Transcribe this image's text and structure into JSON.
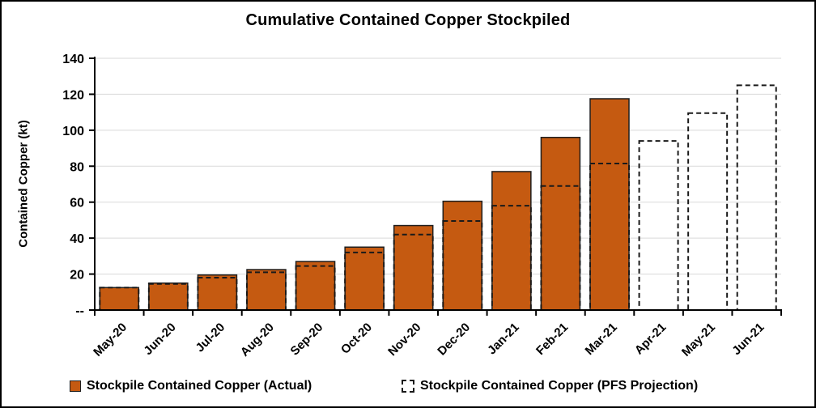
{
  "frame": {
    "background": "#FFFFFF",
    "border_color": "#000000"
  },
  "chart_data": {
    "type": "bar",
    "title": "Cumulative Contained Copper Stockpiled",
    "ylabel": "Contained Copper (kt)",
    "xlabel": "",
    "categories": [
      "May-20",
      "Jun-20",
      "Jul-20",
      "Aug-20",
      "Sep-20",
      "Oct-20",
      "Nov-20",
      "Dec-20",
      "Jan-21",
      "Feb-21",
      "Mar-21",
      "Apr-21",
      "May-21",
      "Jun-21"
    ],
    "series": [
      {
        "name": "Stockpile Contained Copper (Actual)",
        "style": "solid-filled-bar",
        "color": "#C55A11",
        "border_color": "#1F1F1F",
        "values": [
          12.5,
          15,
          19.5,
          22.5,
          27,
          35,
          47,
          60.5,
          77,
          96,
          117.5,
          null,
          null,
          null
        ]
      },
      {
        "name": "Stockpile Contained Copper (PFS Projection)",
        "style": "dashed-outline-bar",
        "color": "#1A1A1A",
        "values": [
          12.5,
          14.5,
          18,
          21,
          24.5,
          32,
          42,
          49.5,
          58,
          69,
          81.5,
          94,
          109.5,
          125
        ]
      }
    ],
    "ylim": [
      0,
      140
    ],
    "ytick_step": 20,
    "ytick_labels": [
      "--",
      "20",
      "40",
      "60",
      "80",
      "100",
      "120",
      "140"
    ],
    "zero_tick_label": "--",
    "grid": true,
    "gridline_color": "#D9D9D9",
    "axis_color": "#000000",
    "legend_position": "bottom"
  }
}
